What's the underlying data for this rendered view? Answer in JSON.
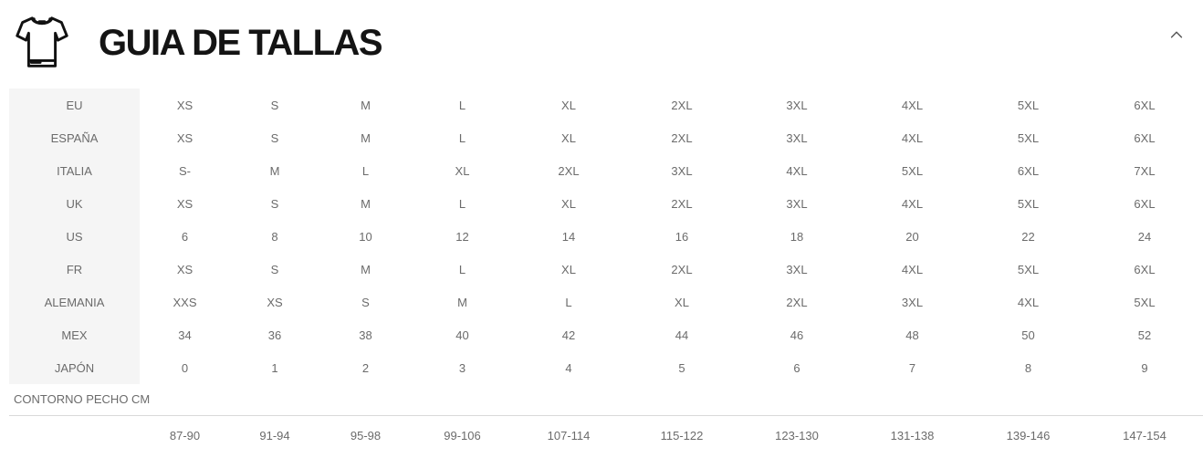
{
  "header": {
    "title": "GUIA DE TALLAS"
  },
  "size_table": {
    "region_rows": [
      {
        "region": "EU",
        "values": [
          "XS",
          "S",
          "M",
          "L",
          "XL",
          "2XL",
          "3XL",
          "4XL",
          "5XL",
          "6XL"
        ]
      },
      {
        "region": "ESPAÑA",
        "values": [
          "XS",
          "S",
          "M",
          "L",
          "XL",
          "2XL",
          "3XL",
          "4XL",
          "5XL",
          "6XL"
        ]
      },
      {
        "region": "ITALIA",
        "values": [
          "S-",
          "M",
          "L",
          "XL",
          "2XL",
          "3XL",
          "4XL",
          "5XL",
          "6XL",
          "7XL"
        ]
      },
      {
        "region": "UK",
        "values": [
          "XS",
          "S",
          "M",
          "L",
          "XL",
          "2XL",
          "3XL",
          "4XL",
          "5XL",
          "6XL"
        ]
      },
      {
        "region": "US",
        "values": [
          "6",
          "8",
          "10",
          "12",
          "14",
          "16",
          "18",
          "20",
          "22",
          "24"
        ]
      },
      {
        "region": "FR",
        "values": [
          "XS",
          "S",
          "M",
          "L",
          "XL",
          "2XL",
          "3XL",
          "4XL",
          "5XL",
          "6XL"
        ]
      },
      {
        "region": "ALEMANIA",
        "values": [
          "XXS",
          "XS",
          "S",
          "M",
          "L",
          "XL",
          "2XL",
          "3XL",
          "4XL",
          "5XL"
        ]
      },
      {
        "region": "MEX",
        "values": [
          "34",
          "36",
          "38",
          "40",
          "42",
          "44",
          "46",
          "48",
          "50",
          "52"
        ]
      },
      {
        "region": "JAPÓN",
        "values": [
          "0",
          "1",
          "2",
          "3",
          "4",
          "5",
          "6",
          "7",
          "8",
          "9"
        ]
      }
    ],
    "chest_label": "CONTORNO PECHO CM",
    "chest_ranges": [
      "87-90",
      "91-94",
      "95-98",
      "99-106",
      "107-114",
      "115-122",
      "123-130",
      "131-138",
      "139-146",
      "147-154"
    ]
  },
  "colors": {
    "label_column_bg": "#f5f5f5",
    "table_text": "#6b6b6b",
    "title_text": "#141414",
    "divider": "#d9d9d9",
    "chevron": "#555555"
  }
}
